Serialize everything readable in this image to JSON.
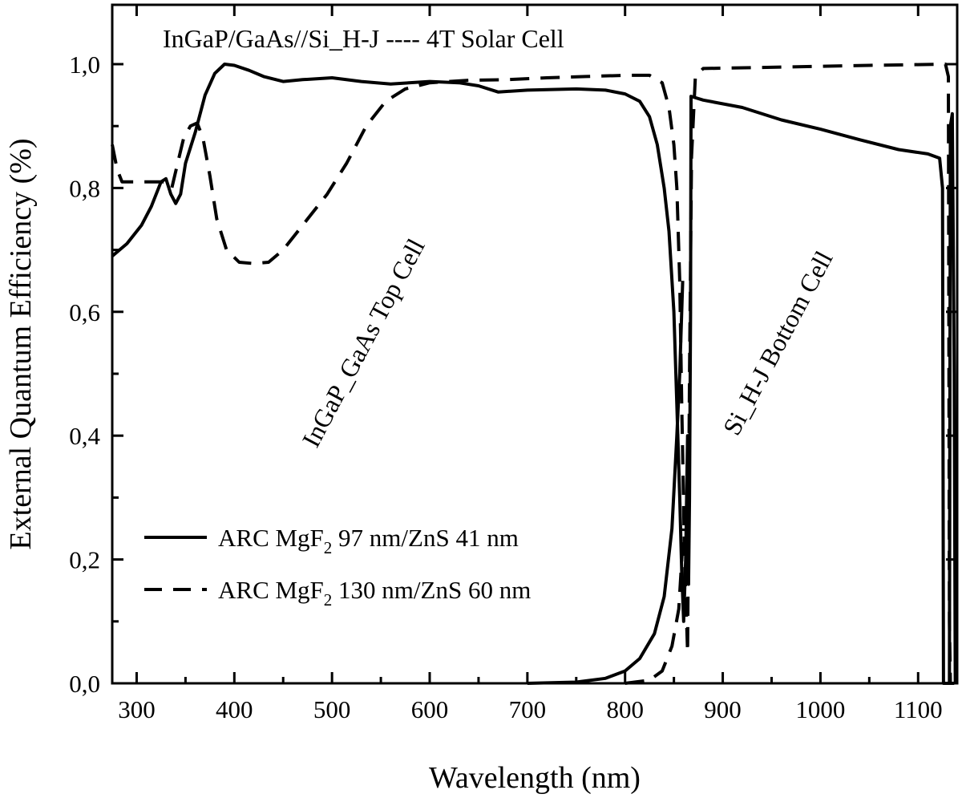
{
  "chart_data": {
    "type": "line",
    "title": "",
    "xlabel": "Wavelength (nm)",
    "ylabel": "External Quantum Efficiency (%)",
    "xlim": [
      275,
      1140
    ],
    "ylim": [
      0.0,
      1.1
    ],
    "x_ticks": [
      300,
      400,
      500,
      600,
      700,
      800,
      900,
      1000,
      1100
    ],
    "y_ticks": [
      0.0,
      0.2,
      0.4,
      0.6,
      0.8,
      1.0
    ],
    "y_tick_labels": [
      "0,0",
      "0,2",
      "0,4",
      "0,6",
      "0,8",
      "1,0"
    ],
    "grid": false,
    "legend_position": "bottom-left",
    "annotations": {
      "header": "InGaP/GaAs//Si_H-J ---- 4T Solar Cell",
      "top_cell": "InGaP_GaAs Top Cell",
      "bottom_cell": "Si_H-J Bottom Cell"
    },
    "series": [
      {
        "legend_prefix": "ARC MgF",
        "legend_sub": "2",
        "legend_suffix": " 97 nm/ZnS 41 nm",
        "style": "solid",
        "points": [
          [
            275,
            0.69
          ],
          [
            290,
            0.71
          ],
          [
            305,
            0.74
          ],
          [
            315,
            0.77
          ],
          [
            325,
            0.81
          ],
          [
            330,
            0.815
          ],
          [
            335,
            0.79
          ],
          [
            340,
            0.775
          ],
          [
            345,
            0.79
          ],
          [
            350,
            0.84
          ],
          [
            360,
            0.89
          ],
          [
            370,
            0.95
          ],
          [
            380,
            0.985
          ],
          [
            390,
            1.0
          ],
          [
            400,
            0.998
          ],
          [
            415,
            0.99
          ],
          [
            430,
            0.98
          ],
          [
            450,
            0.972
          ],
          [
            470,
            0.975
          ],
          [
            500,
            0.978
          ],
          [
            530,
            0.972
          ],
          [
            560,
            0.968
          ],
          [
            600,
            0.972
          ],
          [
            630,
            0.97
          ],
          [
            650,
            0.965
          ],
          [
            670,
            0.955
          ],
          [
            700,
            0.958
          ],
          [
            750,
            0.96
          ],
          [
            780,
            0.958
          ],
          [
            800,
            0.952
          ],
          [
            815,
            0.94
          ],
          [
            825,
            0.915
          ],
          [
            833,
            0.87
          ],
          [
            840,
            0.8
          ],
          [
            845,
            0.73
          ],
          [
            850,
            0.6
          ],
          [
            853,
            0.45
          ],
          [
            856,
            0.3
          ],
          [
            858,
            0.18
          ],
          [
            860,
            0.1
          ],
          [
            862,
            0.2
          ],
          [
            864,
            0.4
          ],
          [
            865,
            0.16
          ],
          [
            866,
            0.3
          ],
          [
            867,
            0.6
          ],
          [
            867.5,
            0.948
          ],
          [
            880,
            0.942
          ],
          [
            920,
            0.93
          ],
          [
            960,
            0.91
          ],
          [
            1000,
            0.895
          ],
          [
            1040,
            0.878
          ],
          [
            1080,
            0.862
          ],
          [
            1110,
            0.855
          ],
          [
            1122,
            0.848
          ],
          [
            1125,
            0.8
          ],
          [
            1126,
            0.0
          ],
          [
            1135,
            0.0
          ]
        ]
      },
      {
        "legend_prefix": "ARC MgF",
        "legend_sub": "2",
        "legend_suffix": " 130 nm/ZnS 60 nm",
        "style": "dashed",
        "points": [
          [
            275,
            0.87
          ],
          [
            280,
            0.83
          ],
          [
            285,
            0.81
          ],
          [
            300,
            0.81
          ],
          [
            320,
            0.81
          ],
          [
            330,
            0.81
          ],
          [
            336,
            0.8
          ],
          [
            342,
            0.84
          ],
          [
            348,
            0.88
          ],
          [
            355,
            0.9
          ],
          [
            362,
            0.905
          ],
          [
            368,
            0.88
          ],
          [
            375,
            0.82
          ],
          [
            382,
            0.75
          ],
          [
            392,
            0.7
          ],
          [
            405,
            0.68
          ],
          [
            420,
            0.678
          ],
          [
            435,
            0.68
          ],
          [
            450,
            0.7
          ],
          [
            470,
            0.74
          ],
          [
            495,
            0.79
          ],
          [
            515,
            0.84
          ],
          [
            535,
            0.9
          ],
          [
            555,
            0.94
          ],
          [
            575,
            0.96
          ],
          [
            600,
            0.97
          ],
          [
            640,
            0.974
          ],
          [
            680,
            0.975
          ],
          [
            720,
            0.978
          ],
          [
            760,
            0.98
          ],
          [
            800,
            0.982
          ],
          [
            825,
            0.982
          ],
          [
            838,
            0.97
          ],
          [
            845,
            0.93
          ],
          [
            850,
            0.87
          ],
          [
            853,
            0.8
          ],
          [
            856,
            0.65
          ],
          [
            858,
            0.45
          ],
          [
            861,
            0.2
          ],
          [
            864,
            0.05
          ],
          [
            866,
            0.5
          ],
          [
            868,
            0.85
          ],
          [
            872,
            0.98
          ],
          [
            880,
            0.993
          ],
          [
            950,
            0.995
          ],
          [
            1050,
            0.998
          ],
          [
            1128,
            1.0
          ],
          [
            1131,
            0.98
          ],
          [
            1132,
            0.1
          ],
          [
            1133,
            0.0
          ],
          [
            1137,
            0.0
          ]
        ]
      },
      {
        "style": "solid",
        "points": [
          [
            700,
            0.0
          ],
          [
            750,
            0.002
          ],
          [
            780,
            0.008
          ],
          [
            800,
            0.02
          ],
          [
            815,
            0.04
          ],
          [
            830,
            0.08
          ],
          [
            840,
            0.14
          ],
          [
            848,
            0.25
          ],
          [
            853,
            0.4
          ],
          [
            856,
            0.5
          ],
          [
            859,
            0.65
          ]
        ]
      },
      {
        "style": "dashed",
        "points": [
          [
            800,
            0.0
          ],
          [
            825,
            0.005
          ],
          [
            838,
            0.02
          ],
          [
            848,
            0.06
          ],
          [
            855,
            0.12
          ],
          [
            860,
            0.25
          ]
        ]
      },
      {
        "style": "solid",
        "points": [
          [
            1132,
            0.0
          ],
          [
            1133,
            0.9
          ],
          [
            1135,
            0.92
          ],
          [
            1137,
            0.5
          ],
          [
            1138,
            0.0
          ]
        ]
      }
    ]
  }
}
